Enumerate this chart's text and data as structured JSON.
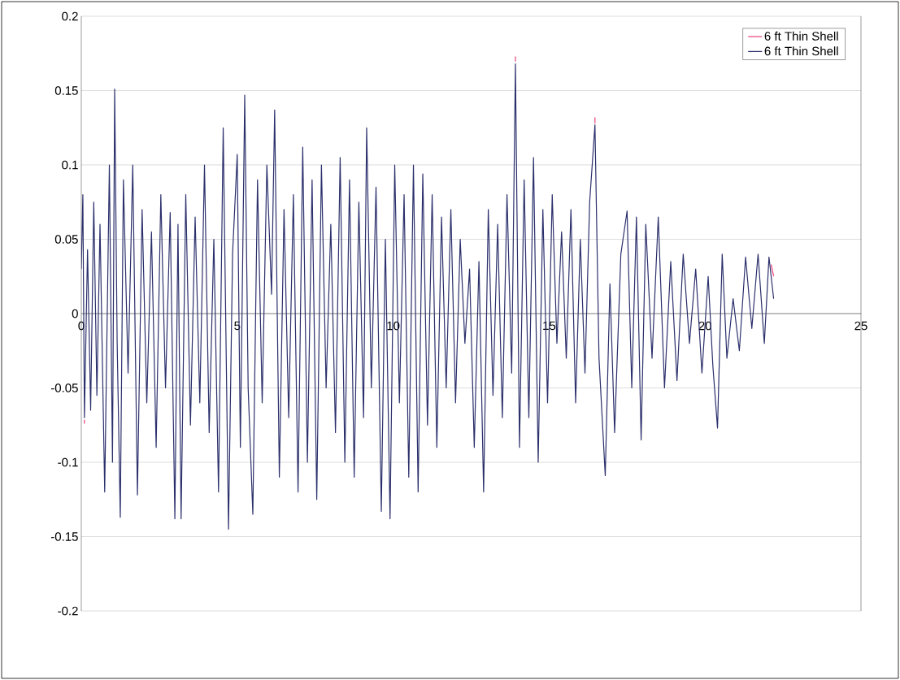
{
  "chart_data": {
    "type": "line",
    "x": [
      0,
      0.05,
      0.1,
      0.2,
      0.3,
      0.4,
      0.5,
      0.6,
      0.75,
      0.9,
      1.0,
      1.07,
      1.15,
      1.25,
      1.35,
      1.5,
      1.65,
      1.8,
      1.95,
      2.1,
      2.25,
      2.4,
      2.55,
      2.7,
      2.85,
      3.0,
      3.1,
      3.2,
      3.35,
      3.5,
      3.65,
      3.8,
      3.95,
      4.1,
      4.25,
      4.4,
      4.55,
      4.72,
      4.85,
      5.0,
      5.1,
      5.24,
      5.35,
      5.5,
      5.65,
      5.8,
      5.95,
      6.1,
      6.2,
      6.35,
      6.5,
      6.65,
      6.8,
      6.95,
      7.1,
      7.25,
      7.4,
      7.55,
      7.7,
      7.85,
      8.0,
      8.15,
      8.3,
      8.45,
      8.6,
      8.75,
      8.9,
      9.05,
      9.15,
      9.3,
      9.45,
      9.62,
      9.75,
      9.9,
      10.05,
      10.2,
      10.35,
      10.5,
      10.65,
      10.8,
      10.95,
      11.1,
      11.25,
      11.4,
      11.55,
      11.7,
      11.85,
      12.0,
      12.15,
      12.3,
      12.45,
      12.6,
      12.75,
      12.9,
      13.05,
      13.2,
      13.35,
      13.5,
      13.65,
      13.8,
      13.92,
      14.05,
      14.2,
      14.35,
      14.5,
      14.65,
      14.8,
      14.95,
      15.1,
      15.25,
      15.4,
      15.55,
      15.7,
      15.85,
      16.0,
      16.15,
      16.3,
      16.47,
      16.6,
      16.8,
      16.95,
      17.1,
      17.3,
      17.5,
      17.65,
      17.8,
      17.95,
      18.1,
      18.3,
      18.5,
      18.7,
      18.9,
      19.1,
      19.3,
      19.5,
      19.7,
      19.9,
      20.1,
      20.25,
      20.4,
      20.55,
      20.7,
      20.9,
      21.1,
      21.3,
      21.5,
      21.7,
      21.9,
      22.05,
      22.2
    ],
    "series": [
      {
        "name": "6 ft Thin Shell",
        "color": "#e8407a",
        "x": [
          0.1,
          0.1,
          5.0,
          13.92,
          13.92,
          14.0,
          16.47,
          16.47,
          20.0,
          22.12,
          22.2
        ],
        "values": [
          -0.0715,
          -0.074,
          null,
          0.1695,
          0.173,
          null,
          0.128,
          0.132,
          null,
          0.033,
          0.025
        ]
      },
      {
        "name": "6 ft Thin Shell",
        "color": "#2b2f6b",
        "values": [
          0.03,
          0.08,
          -0.07,
          0.043,
          -0.065,
          0.075,
          -0.055,
          0.06,
          -0.12,
          0.1,
          -0.1,
          0.151,
          -0.02,
          -0.137,
          0.09,
          -0.04,
          0.1,
          -0.122,
          0.07,
          -0.06,
          0.055,
          -0.09,
          0.08,
          -0.05,
          0.068,
          -0.138,
          0.06,
          -0.138,
          0.08,
          -0.075,
          0.065,
          -0.06,
          0.1,
          -0.08,
          0.05,
          -0.12,
          0.125,
          -0.145,
          0.04,
          0.107,
          -0.09,
          0.147,
          -0.05,
          -0.135,
          0.09,
          -0.06,
          0.1,
          0.013,
          0.137,
          -0.11,
          0.07,
          -0.07,
          0.08,
          -0.12,
          0.112,
          -0.1,
          0.09,
          -0.125,
          0.1,
          -0.05,
          0.06,
          -0.08,
          0.105,
          -0.1,
          0.09,
          -0.11,
          0.075,
          -0.07,
          0.125,
          -0.05,
          0.085,
          -0.133,
          0.05,
          -0.138,
          0.1,
          -0.06,
          0.08,
          -0.11,
          0.1,
          -0.12,
          0.094,
          -0.075,
          0.08,
          -0.09,
          0.065,
          -0.05,
          0.07,
          -0.06,
          0.05,
          -0.02,
          0.03,
          -0.09,
          0.035,
          -0.12,
          0.07,
          -0.055,
          0.06,
          -0.07,
          0.08,
          -0.04,
          0.168,
          -0.09,
          0.09,
          -0.07,
          0.105,
          -0.1,
          0.07,
          -0.06,
          0.08,
          -0.02,
          0.055,
          -0.03,
          0.07,
          -0.06,
          0.05,
          -0.04,
          0.075,
          0.127,
          -0.03,
          -0.109,
          0.02,
          -0.08,
          0.04,
          0.069,
          -0.05,
          0.065,
          -0.085,
          0.06,
          -0.03,
          0.065,
          -0.05,
          0.035,
          -0.045,
          0.04,
          -0.02,
          0.03,
          -0.04,
          0.025,
          -0.035,
          -0.077,
          0.04,
          -0.03,
          0.01,
          -0.025,
          0.038,
          -0.01,
          0.04,
          -0.02,
          0.038,
          0.01
        ]
      }
    ],
    "xlim": [
      0,
      25
    ],
    "xticks": [
      0,
      5,
      10,
      15,
      20,
      25
    ],
    "ylim": [
      -0.2,
      0.2
    ],
    "yticks": [
      -0.2,
      -0.15,
      -0.1,
      -0.05,
      0,
      0.05,
      0.1,
      0.15,
      0.2
    ],
    "grid": "y",
    "legend": "top right",
    "marker": "none",
    "line_style": "solid"
  }
}
